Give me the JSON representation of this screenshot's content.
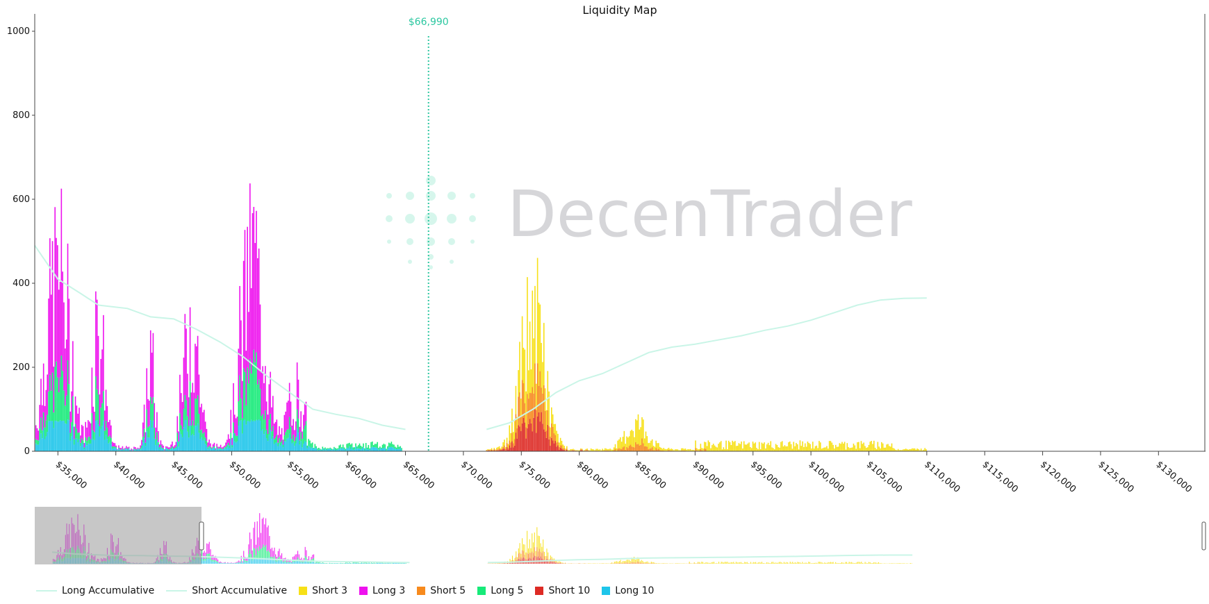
{
  "chart_data": {
    "type": "bar",
    "title": "Liquidity Map",
    "watermark": "DecenTrader",
    "current_price": 66990,
    "current_price_label": "$66,990",
    "y_ticks": [
      0,
      200,
      400,
      600,
      800,
      1000
    ],
    "ylim": [
      0,
      1000
    ],
    "xlim": [
      33000,
      134000
    ],
    "x_ticks": [
      35000,
      40000,
      45000,
      50000,
      55000,
      60000,
      65000,
      70000,
      75000,
      80000,
      85000,
      90000,
      95000,
      100000,
      105000,
      110000,
      115000,
      120000,
      125000,
      130000
    ],
    "x_tick_labels": [
      "$35,000",
      "$40,000",
      "$45,000",
      "$50,000",
      "$55,000",
      "$60,000",
      "$65,000",
      "$70,000",
      "$75,000",
      "$80,000",
      "$85,000",
      "$90,000",
      "$95,000",
      "$100,000",
      "$105,000",
      "$110,000",
      "$115,000",
      "$120,000",
      "$125,000",
      "$130,000"
    ],
    "colors": {
      "short3": "#f7e017",
      "long3": "#ee11ee",
      "short5": "#f78a1d",
      "long5": "#17ea79",
      "short10": "#dd2a24",
      "long10": "#1ec5ea",
      "accumulative": "#c9f5e7",
      "price_line": "#2bc7a0",
      "navigator_mask": "#999999"
    },
    "legend": [
      {
        "key": "long_accum",
        "label": "Long Accumulative",
        "kind": "line",
        "color": "#c9f5e7"
      },
      {
        "key": "short_accum",
        "label": "Short Accumulative",
        "kind": "line",
        "color": "#c9f5e7"
      },
      {
        "key": "short3",
        "label": "Short 3",
        "kind": "box",
        "color": "#f7e017"
      },
      {
        "key": "long3",
        "label": "Long 3",
        "kind": "box",
        "color": "#ee11ee"
      },
      {
        "key": "short5",
        "label": "Short 5",
        "kind": "box",
        "color": "#f78a1d"
      },
      {
        "key": "long5",
        "label": "Long 5",
        "kind": "box",
        "color": "#17ea79"
      },
      {
        "key": "short10",
        "label": "Short 10",
        "kind": "box",
        "color": "#dd2a24"
      },
      {
        "key": "long10",
        "label": "Long 10",
        "kind": "box",
        "color": "#1ec5ea"
      }
    ],
    "long_clusters": [
      {
        "center": 35000,
        "width": 1300,
        "peak": 650
      },
      {
        "center": 38500,
        "width": 700,
        "peak": 420
      },
      {
        "center": 43000,
        "width": 500,
        "peak": 280
      },
      {
        "center": 46500,
        "width": 900,
        "peak": 420
      },
      {
        "center": 51800,
        "width": 1300,
        "peak": 670
      },
      {
        "center": 55500,
        "width": 900,
        "peak": 180
      }
    ],
    "short_clusters": [
      {
        "center": 76000,
        "width": 1400,
        "peak": 420
      },
      {
        "center": 85000,
        "width": 1300,
        "peak": 80
      },
      {
        "center": 103000,
        "width": 3000,
        "peak": 30
      }
    ],
    "long_accumulative": [
      [
        33000,
        490
      ],
      [
        35000,
        410
      ],
      [
        37000,
        375
      ],
      [
        38500,
        348
      ],
      [
        41000,
        340
      ],
      [
        43000,
        320
      ],
      [
        45000,
        315
      ],
      [
        47000,
        290
      ],
      [
        49000,
        260
      ],
      [
        51000,
        225
      ],
      [
        53000,
        180
      ],
      [
        55000,
        140
      ],
      [
        57000,
        100
      ],
      [
        59000,
        88
      ],
      [
        61000,
        78
      ],
      [
        63000,
        62
      ],
      [
        65000,
        52
      ]
    ],
    "short_accumulative": [
      [
        72000,
        52
      ],
      [
        74000,
        68
      ],
      [
        76000,
        100
      ],
      [
        78000,
        140
      ],
      [
        80000,
        168
      ],
      [
        82000,
        185
      ],
      [
        84000,
        210
      ],
      [
        86000,
        235
      ],
      [
        88000,
        248
      ],
      [
        90000,
        255
      ],
      [
        92000,
        265
      ],
      [
        94000,
        275
      ],
      [
        96000,
        288
      ],
      [
        98000,
        298
      ],
      [
        100000,
        312
      ],
      [
        102000,
        330
      ],
      [
        104000,
        348
      ],
      [
        106000,
        360
      ],
      [
        108000,
        364
      ],
      [
        110000,
        365
      ]
    ]
  }
}
